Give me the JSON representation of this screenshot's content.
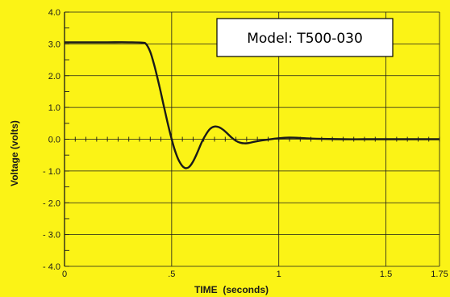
{
  "chart_data": {
    "type": "line",
    "title": "",
    "xlabel": "TIME  (seconds)",
    "ylabel": "Voltage (volts)",
    "xlim": [
      0,
      1.75
    ],
    "ylim": [
      -4.0,
      4.0
    ],
    "x_ticks": [
      {
        "v": 0,
        "label": "0"
      },
      {
        "v": 0.5,
        "label": ".5"
      },
      {
        "v": 1.0,
        "label": "1"
      },
      {
        "v": 1.5,
        "label": "1.5"
      },
      {
        "v": 1.75,
        "label": "1.75"
      }
    ],
    "y_ticks": [
      {
        "v": 4.0,
        "label": "4.0"
      },
      {
        "v": 3.0,
        "label": "3.0"
      },
      {
        "v": 2.0,
        "label": "2.0"
      },
      {
        "v": 1.0,
        "label": "1.0"
      },
      {
        "v": 0.0,
        "label": "0.0"
      },
      {
        "v": -1.0,
        "label": "- 1.0"
      },
      {
        "v": -2.0,
        "label": "- 2.0"
      },
      {
        "v": -3.0,
        "label": "- 3.0"
      },
      {
        "v": -4.0,
        "label": "- 4.0"
      }
    ],
    "grid": true,
    "annotation": "Model: T500-030",
    "series": [
      {
        "x": [
          0,
          0.1,
          0.2,
          0.3,
          0.36,
          0.38,
          0.4,
          0.42,
          0.44,
          0.46,
          0.48,
          0.5,
          0.52,
          0.54,
          0.56,
          0.58,
          0.6,
          0.62,
          0.64,
          0.66,
          0.68,
          0.7,
          0.72,
          0.74,
          0.76,
          0.78,
          0.8,
          0.82,
          0.84,
          0.86,
          0.88,
          0.9,
          0.95,
          1.0,
          1.05,
          1.1,
          1.15,
          1.2,
          1.3,
          1.4,
          1.5,
          1.6,
          1.75
        ],
        "y": [
          3.05,
          3.05,
          3.05,
          3.05,
          3.04,
          3.0,
          2.75,
          2.3,
          1.75,
          1.15,
          0.55,
          0.0,
          -0.45,
          -0.75,
          -0.9,
          -0.88,
          -0.7,
          -0.42,
          -0.1,
          0.15,
          0.33,
          0.4,
          0.38,
          0.3,
          0.18,
          0.05,
          -0.05,
          -0.11,
          -0.13,
          -0.12,
          -0.09,
          -0.06,
          -0.01,
          0.03,
          0.05,
          0.04,
          0.02,
          0.01,
          0.0,
          0.0,
          0.0,
          0.0,
          0.0
        ]
      }
    ],
    "colors": {
      "background": "#fbf316",
      "line": "#1a1a1a",
      "grid": "#1a1a1a"
    }
  }
}
